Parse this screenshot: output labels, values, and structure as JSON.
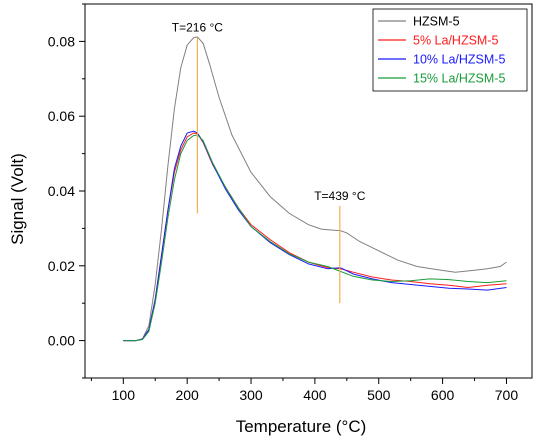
{
  "chart_data": {
    "type": "line",
    "xlabel": "Temperature (°C)",
    "ylabel": "Signal (Volt)",
    "xlim": [
      40,
      740
    ],
    "ylim": [
      -0.01,
      0.09
    ],
    "xticks": [
      100,
      200,
      300,
      400,
      500,
      600,
      700
    ],
    "yticks": [
      0.0,
      0.02,
      0.04,
      0.06,
      0.08
    ],
    "xtick_labels": [
      "100",
      "200",
      "300",
      "400",
      "500",
      "600",
      "700"
    ],
    "ytick_labels": [
      "0.00",
      "0.02",
      "0.04",
      "0.06",
      "0.08"
    ],
    "grid": false,
    "legend_position": "top-right",
    "series": [
      {
        "name": "HZSM-5",
        "color": "#808080",
        "x": [
          100,
          120,
          130,
          140,
          150,
          160,
          170,
          180,
          190,
          200,
          210,
          216,
          225,
          235,
          250,
          270,
          300,
          330,
          360,
          390,
          410,
          430,
          440,
          450,
          470,
          500,
          530,
          560,
          590,
          620,
          650,
          670,
          690,
          700
        ],
        "y": [
          0.0,
          0.0,
          0.0005,
          0.004,
          0.015,
          0.03,
          0.047,
          0.062,
          0.073,
          0.079,
          0.081,
          0.0812,
          0.0795,
          0.074,
          0.065,
          0.055,
          0.045,
          0.0385,
          0.034,
          0.031,
          0.0298,
          0.0295,
          0.0294,
          0.0288,
          0.0265,
          0.024,
          0.0215,
          0.0198,
          0.019,
          0.0183,
          0.0188,
          0.0192,
          0.0198,
          0.021
        ]
      },
      {
        "name": "5% La/HZSM-5",
        "color": "#ff1a1a",
        "x": [
          100,
          120,
          130,
          140,
          150,
          160,
          170,
          180,
          190,
          200,
          210,
          216,
          225,
          240,
          260,
          280,
          300,
          330,
          360,
          390,
          420,
          440,
          460,
          490,
          520,
          550,
          580,
          610,
          640,
          670,
          700
        ],
        "y": [
          0.0,
          0.0,
          0.0004,
          0.003,
          0.011,
          0.023,
          0.035,
          0.045,
          0.051,
          0.0545,
          0.0555,
          0.0553,
          0.053,
          0.047,
          0.041,
          0.0355,
          0.031,
          0.027,
          0.0235,
          0.021,
          0.0195,
          0.0192,
          0.0183,
          0.017,
          0.0162,
          0.0158,
          0.0152,
          0.0148,
          0.0142,
          0.0148,
          0.0152
        ]
      },
      {
        "name": "10% La/HZSM-5",
        "color": "#1a1aff",
        "x": [
          100,
          120,
          130,
          140,
          150,
          160,
          170,
          180,
          190,
          200,
          210,
          216,
          225,
          240,
          260,
          280,
          300,
          330,
          360,
          390,
          420,
          440,
          460,
          490,
          520,
          550,
          580,
          610,
          640,
          670,
          700
        ],
        "y": [
          0.0,
          0.0,
          0.0004,
          0.003,
          0.011,
          0.023,
          0.035,
          0.046,
          0.052,
          0.0555,
          0.056,
          0.0555,
          0.0532,
          0.0472,
          0.0405,
          0.035,
          0.0305,
          0.0262,
          0.023,
          0.0205,
          0.0192,
          0.0195,
          0.0178,
          0.0165,
          0.0155,
          0.015,
          0.0145,
          0.014,
          0.0138,
          0.0135,
          0.0142
        ]
      },
      {
        "name": "15% La/HZSM-5",
        "color": "#1a9c3a",
        "x": [
          100,
          120,
          130,
          140,
          150,
          160,
          170,
          180,
          190,
          200,
          210,
          216,
          225,
          240,
          260,
          280,
          300,
          330,
          360,
          390,
          420,
          440,
          460,
          490,
          520,
          550,
          580,
          610,
          640,
          670,
          700
        ],
        "y": [
          0.0,
          0.0,
          0.0003,
          0.0025,
          0.01,
          0.021,
          0.033,
          0.043,
          0.05,
          0.0535,
          0.0548,
          0.055,
          0.0535,
          0.0475,
          0.041,
          0.0355,
          0.0305,
          0.0265,
          0.0232,
          0.021,
          0.0198,
          0.0185,
          0.0172,
          0.0162,
          0.0158,
          0.016,
          0.0165,
          0.0163,
          0.0158,
          0.0155,
          0.016
        ]
      }
    ],
    "annotations": [
      {
        "label": "T=216 °C",
        "x": 216,
        "y_from": 0.034,
        "y_to": 0.081,
        "color": "#f0b050"
      },
      {
        "label": "T=439 °C",
        "x": 439,
        "y_from": 0.01,
        "y_to": 0.036,
        "color": "#f0b050"
      }
    ]
  }
}
